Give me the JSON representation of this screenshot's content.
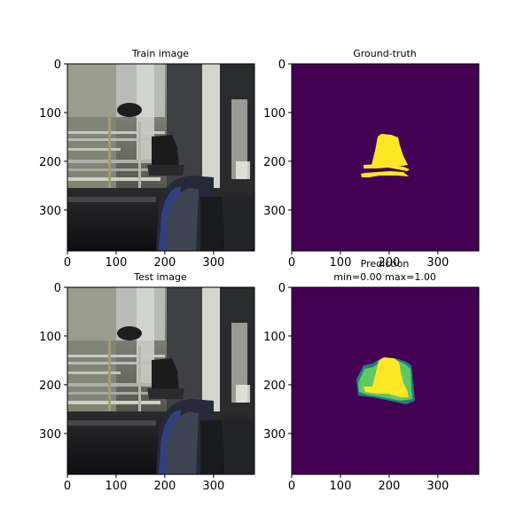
{
  "colors": {
    "background": "#440154",
    "mask_yellow": "#fde725",
    "mask_green": "#5ec962",
    "mask_teal": "#21918c"
  },
  "chart_data": [
    {
      "type": "image",
      "title": "Train image",
      "xlim": [
        0,
        384
      ],
      "ylim": [
        384,
        0
      ],
      "xticks": [
        0,
        100,
        200,
        300
      ],
      "yticks": [
        0,
        100,
        200,
        300
      ]
    },
    {
      "type": "heatmap",
      "title": "Ground-truth",
      "colormap": "viridis",
      "xlim": [
        0,
        384
      ],
      "ylim": [
        384,
        0
      ],
      "xticks": [
        0,
        100,
        200,
        300
      ],
      "yticks": [
        0,
        100,
        200,
        300
      ]
    },
    {
      "type": "image",
      "title": "Test image",
      "xlim": [
        0,
        384
      ],
      "ylim": [
        384,
        0
      ],
      "xticks": [
        0,
        100,
        200,
        300
      ],
      "yticks": [
        0,
        100,
        200,
        300
      ]
    },
    {
      "type": "heatmap",
      "title": "Prediction",
      "subtitle": "min=0.00 max=1.00",
      "colormap": "viridis",
      "xlim": [
        0,
        384
      ],
      "ylim": [
        384,
        0
      ],
      "xticks": [
        0,
        100,
        200,
        300
      ],
      "yticks": [
        0,
        100,
        200,
        300
      ]
    }
  ]
}
